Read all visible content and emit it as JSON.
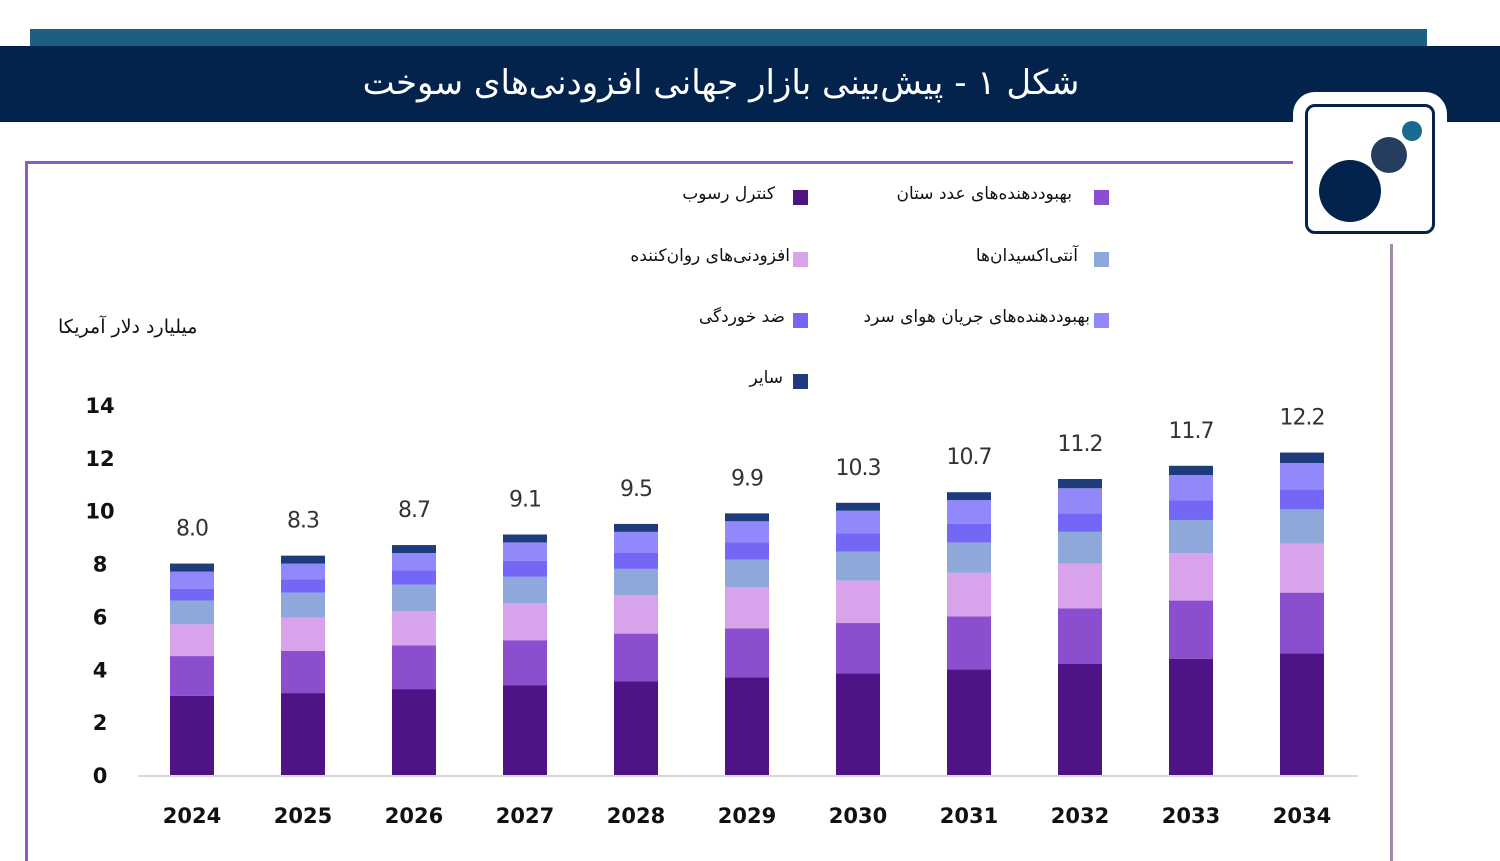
{
  "header": {
    "title": "شکل ۱ -  پیش‌بینی بازار جهانی افزودنی‌های سوخت",
    "logo_icon": "three-circles-logo-icon"
  },
  "colors": {
    "top_strip": "#1b5f82",
    "title_bar": "#03224c",
    "frame_border": "#8e5bc4"
  },
  "chart_data": {
    "type": "bar",
    "stacked": true,
    "title": "",
    "xlabel": "",
    "ylabel": "میلیارد دلار آمریکا",
    "ylim": [
      0,
      14
    ],
    "yticks": [
      "0",
      "2",
      "4",
      "6",
      "8",
      "10",
      "12",
      "14"
    ],
    "grid": false,
    "legend_position": "top",
    "categories": [
      "2024",
      "2025",
      "2026",
      "2027",
      "2028",
      "2029",
      "2030",
      "2031",
      "2032",
      "2033",
      "2034"
    ],
    "totals": [
      "8.0",
      "8.3",
      "8.7",
      "9.1",
      "9.5",
      "9.9",
      "10.3",
      "10.7",
      "11.2",
      "11.7",
      "12.2"
    ],
    "series": [
      {
        "name": "کنترل رسوب",
        "color": "#4e1485",
        "values": [
          3.0,
          3.1,
          3.25,
          3.4,
          3.55,
          3.7,
          3.85,
          4.0,
          4.2,
          4.4,
          4.6
        ]
      },
      {
        "name": "بهبوددهنده‌های عدد ستان",
        "color": "#8b4ecf",
        "values": [
          1.5,
          1.6,
          1.65,
          1.7,
          1.8,
          1.85,
          1.9,
          2.0,
          2.1,
          2.2,
          2.3
        ]
      },
      {
        "name": "افزودنی‌های روان‌کننده",
        "color": "#d9a3ec",
        "values": [
          1.2,
          1.25,
          1.3,
          1.4,
          1.45,
          1.55,
          1.6,
          1.65,
          1.7,
          1.8,
          1.85
        ]
      },
      {
        "name": "آنتی‌اکسیدان‌ها",
        "color": "#8ea8dc",
        "values": [
          0.9,
          0.95,
          1.0,
          1.0,
          1.0,
          1.05,
          1.1,
          1.15,
          1.2,
          1.25,
          1.3
        ]
      },
      {
        "name": "ضد خوردگی",
        "color": "#7467f5",
        "values": [
          0.45,
          0.5,
          0.55,
          0.6,
          0.6,
          0.65,
          0.7,
          0.7,
          0.7,
          0.75,
          0.75
        ]
      },
      {
        "name": "بهبوددهنده‌های جریان هوای سرد",
        "color": "#9189fb",
        "values": [
          0.65,
          0.6,
          0.65,
          0.7,
          0.8,
          0.8,
          0.85,
          0.9,
          0.95,
          0.95,
          1.0
        ]
      },
      {
        "name": "سایر",
        "color": "#1e3b7c",
        "values": [
          0.3,
          0.3,
          0.3,
          0.3,
          0.3,
          0.3,
          0.3,
          0.3,
          0.35,
          0.35,
          0.4
        ]
      }
    ]
  }
}
